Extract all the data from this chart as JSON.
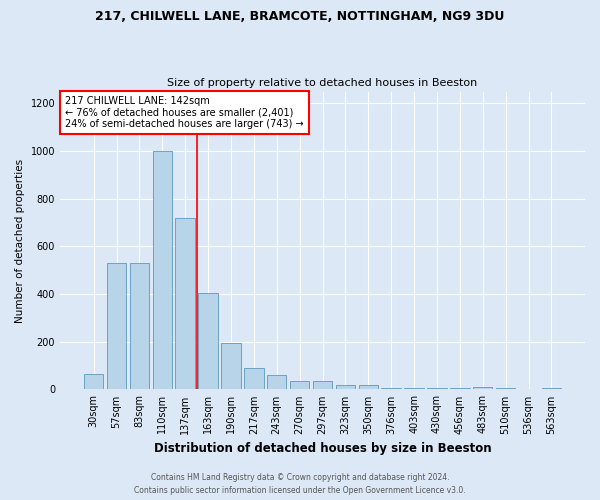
{
  "title1": "217, CHILWELL LANE, BRAMCOTE, NOTTINGHAM, NG9 3DU",
  "title2": "Size of property relative to detached houses in Beeston",
  "xlabel": "Distribution of detached houses by size in Beeston",
  "ylabel": "Number of detached properties",
  "categories": [
    "30sqm",
    "57sqm",
    "83sqm",
    "110sqm",
    "137sqm",
    "163sqm",
    "190sqm",
    "217sqm",
    "243sqm",
    "270sqm",
    "297sqm",
    "323sqm",
    "350sqm",
    "376sqm",
    "403sqm",
    "430sqm",
    "456sqm",
    "483sqm",
    "510sqm",
    "536sqm",
    "563sqm"
  ],
  "values": [
    65,
    530,
    530,
    1000,
    720,
    405,
    195,
    90,
    60,
    35,
    35,
    20,
    20,
    5,
    5,
    5,
    5,
    10,
    5,
    2,
    5
  ],
  "bar_color": "#b8d4e8",
  "bar_edge_color": "#5a9abf",
  "red_line_x": 4.5,
  "annotation_title": "217 CHILWELL LANE: 142sqm",
  "annotation_line1": "← 76% of detached houses are smaller (2,401)",
  "annotation_line2": "24% of semi-detached houses are larger (743) →",
  "annotation_box_color": "white",
  "annotation_edge_color": "red",
  "ylim": [
    0,
    1250
  ],
  "yticks": [
    0,
    200,
    400,
    600,
    800,
    1000,
    1200
  ],
  "footer1": "Contains HM Land Registry data © Crown copyright and database right 2024.",
  "footer2": "Contains public sector information licensed under the Open Government Licence v3.0.",
  "bg_color": "#dce8f5",
  "plot_bg_color": "#dce8f5"
}
